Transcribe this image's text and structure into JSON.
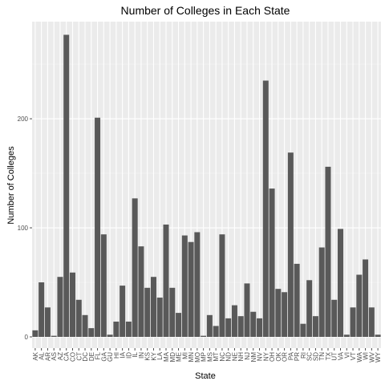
{
  "chart_data": {
    "type": "bar",
    "title": "Number of Colleges in Each State",
    "xlabel": "State",
    "ylabel": "Number of Colleges",
    "ylim": [
      0,
      280
    ],
    "yticks": [
      0,
      100,
      200
    ],
    "grid": true,
    "legend": "none",
    "colors": {
      "bar": "#595959",
      "panel": "#ebebeb",
      "grid_major": "#ffffff",
      "grid_minor": "#f5f5f5",
      "tick": "#4d4d4d"
    },
    "categories": [
      "AK",
      "AL",
      "AR",
      "AS",
      "AZ",
      "CA",
      "CO",
      "CT",
      "DC",
      "DE",
      "FL",
      "GA",
      "GU",
      "HI",
      "IA",
      "ID",
      "IL",
      "IN",
      "KS",
      "KY",
      "LA",
      "MA",
      "MD",
      "ME",
      "MI",
      "MN",
      "MO",
      "MP",
      "MS",
      "MT",
      "NC",
      "ND",
      "NE",
      "NH",
      "NJ",
      "NM",
      "NV",
      "NY",
      "OH",
      "OK",
      "OR",
      "PA",
      "PR",
      "RI",
      "SC",
      "SD",
      "TN",
      "TX",
      "UT",
      "VA",
      "VI",
      "VT",
      "WA",
      "WI",
      "WV",
      "WY"
    ],
    "values": [
      6,
      50,
      27,
      1,
      55,
      277,
      59,
      34,
      20,
      8,
      201,
      94,
      2,
      14,
      47,
      14,
      127,
      83,
      45,
      55,
      36,
      103,
      45,
      22,
      93,
      87,
      96,
      1,
      20,
      10,
      94,
      17,
      29,
      19,
      49,
      23,
      17,
      235,
      136,
      44,
      41,
      169,
      67,
      12,
      52,
      19,
      82,
      156,
      34,
      99,
      2,
      27,
      57,
      71,
      27,
      2
    ]
  }
}
